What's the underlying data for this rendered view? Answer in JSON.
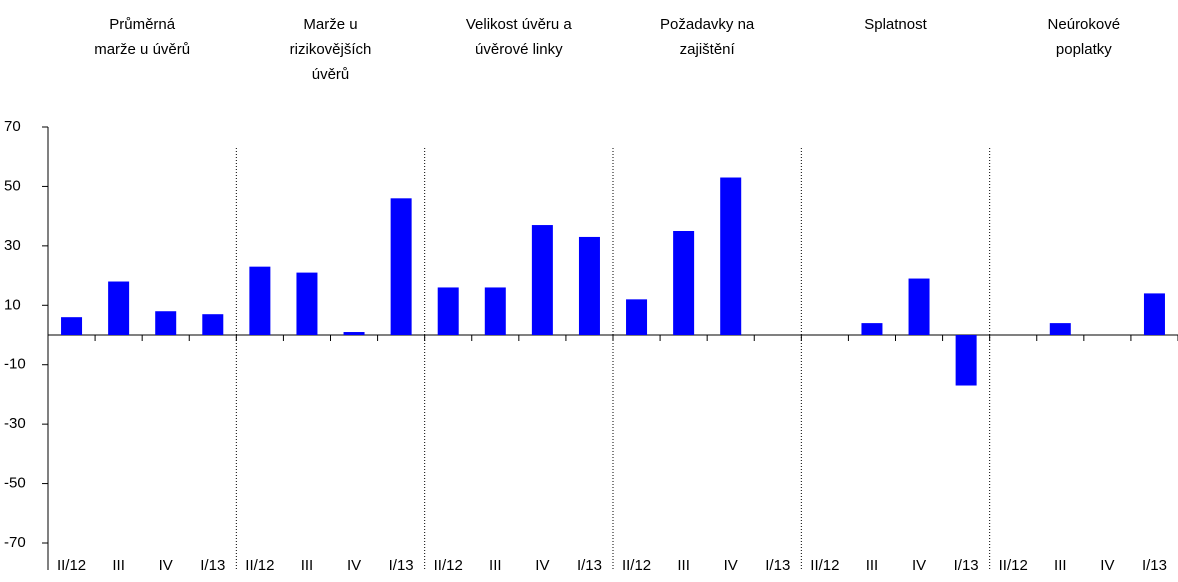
{
  "chart_data": {
    "type": "bar",
    "groups": [
      {
        "title": [
          "Průměrná",
          "marže u úvěrů"
        ]
      },
      {
        "title": [
          "Marže  u",
          "rizikovějších",
          "úvěrů"
        ]
      },
      {
        "title": [
          "Velikost úvěru a",
          "úvěrové linky"
        ]
      },
      {
        "title": [
          "Požadavky na",
          "zajištění"
        ]
      },
      {
        "title": [
          "Splatnost"
        ]
      },
      {
        "title": [
          "Neúrokové",
          "poplatky"
        ]
      }
    ],
    "categories": [
      "II/12",
      "III",
      "IV",
      "I/13",
      "II/12",
      "III",
      "IV",
      "I/13",
      "II/12",
      "III",
      "IV",
      "I/13",
      "II/12",
      "III",
      "IV",
      "I/13",
      "II/12",
      "III",
      "IV",
      "I/13",
      "II/12",
      "III",
      "IV",
      "I/13"
    ],
    "values": [
      6,
      18,
      8,
      7,
      23,
      21,
      1,
      46,
      16,
      16,
      37,
      33,
      12,
      35,
      53,
      0,
      0,
      4,
      19,
      -17,
      0,
      4,
      0,
      14
    ],
    "color": "#0000ff",
    "ylim": [
      -70,
      70
    ],
    "yticks": [
      -70,
      -50,
      -30,
      -10,
      10,
      30,
      50,
      70
    ]
  }
}
